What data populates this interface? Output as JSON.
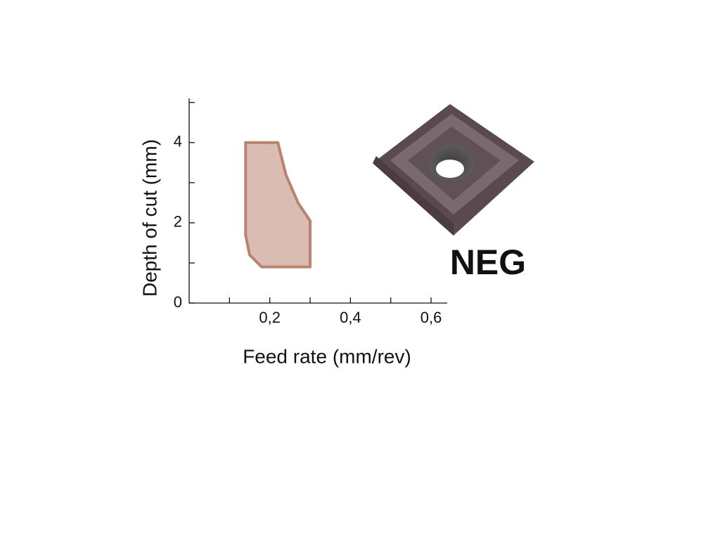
{
  "chart_data": {
    "type": "area",
    "x_label": "Feed rate (mm/rev)",
    "y_label": "Depth of cut (mm)",
    "annotation": "NEG",
    "x": [
      0.14,
      0.22,
      0.24,
      0.27,
      0.3,
      0.3,
      0.18,
      0.15,
      0.14
    ],
    "values": [
      4,
      4,
      3.2,
      2.5,
      2.05,
      0.9,
      0.9,
      1.2,
      1.7
    ],
    "color": "#dbbcb3",
    "edge_color": "#b98370",
    "xlim": [
      0,
      0.64
    ],
    "ylim": [
      0,
      5.1
    ],
    "xticks": [
      {
        "value": 0.2,
        "label": "0,2"
      },
      {
        "value": 0.4,
        "label": "0,4"
      },
      {
        "value": 0.6,
        "label": "0,6"
      }
    ],
    "xminorticks": [
      0.1,
      0.3,
      0.5
    ],
    "yticks": [
      0,
      2,
      4
    ],
    "yminorticks": [
      1,
      3,
      5
    ]
  }
}
